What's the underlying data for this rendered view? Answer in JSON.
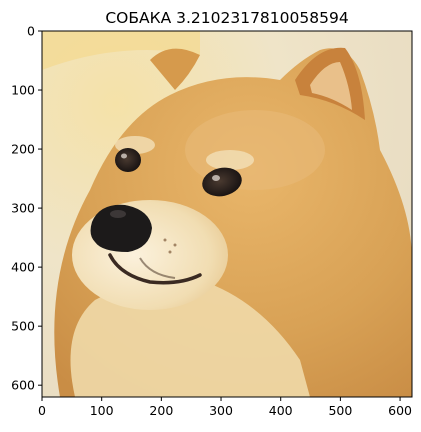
{
  "chart_data": {
    "type": "image",
    "title": "СОБАКА 3.2102317810058594",
    "xlabel": "",
    "ylabel": "",
    "xlim": [
      0,
      620
    ],
    "ylim": [
      620,
      0
    ],
    "x_ticks": [
      0,
      100,
      200,
      300,
      400,
      500,
      600
    ],
    "y_ticks": [
      0,
      100,
      200,
      300,
      400,
      500,
      600
    ],
    "x_tick_labels": [
      "0",
      "100",
      "200",
      "300",
      "400",
      "500",
      "600"
    ],
    "y_tick_labels": [
      "0",
      "100",
      "200",
      "300",
      "400",
      "500",
      "600"
    ],
    "grid": false,
    "image_subject": "shiba-inu-dog-photo",
    "colors": {
      "background": "#f1e6c4",
      "fur": "#d49a4c",
      "fur_light": "#f2dcaa",
      "nose": "#1c1a1a"
    }
  }
}
